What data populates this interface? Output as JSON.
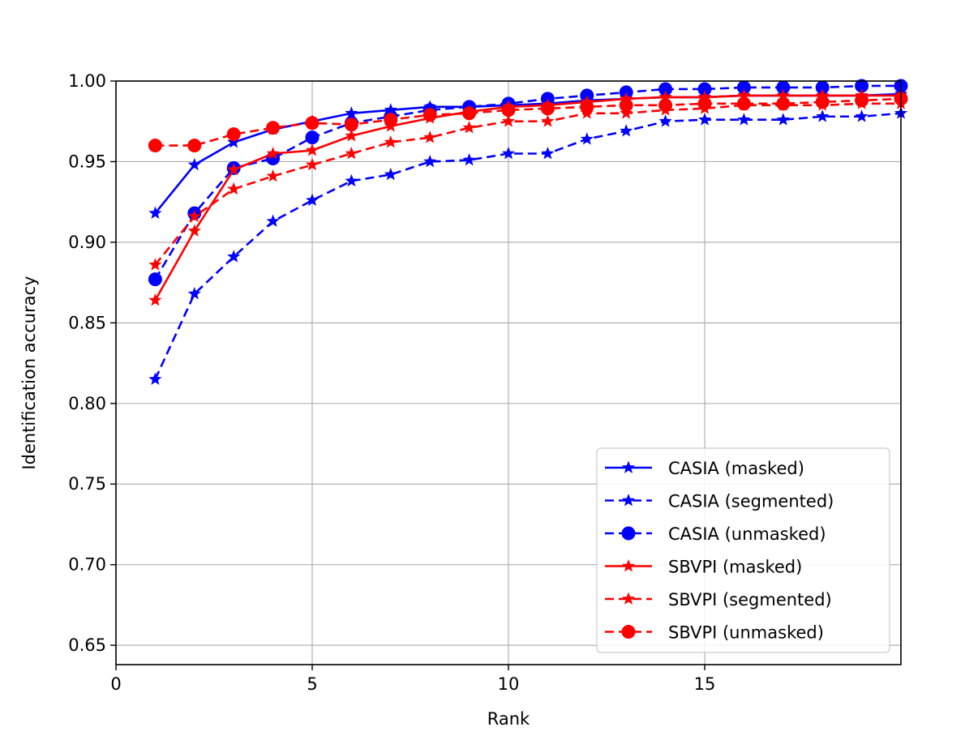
{
  "chart_data": {
    "type": "line",
    "title": "",
    "xlabel": "Rank",
    "ylabel": "Identification accuracy",
    "xlim": [
      0,
      20
    ],
    "ylim": [
      0.638,
      1.0
    ],
    "x_ticks": [
      0,
      5,
      10,
      15
    ],
    "y_ticks": [
      0.65,
      0.7,
      0.75,
      0.8,
      0.85,
      0.9,
      0.95,
      1.0
    ],
    "grid": true,
    "legend_position": "lower-right",
    "x": [
      1,
      2,
      3,
      4,
      5,
      6,
      7,
      8,
      9,
      10,
      11,
      12,
      13,
      14,
      15,
      16,
      17,
      18,
      19,
      20
    ],
    "series": [
      {
        "name": "CASIA (masked)",
        "color": "#0000ff",
        "linestyle": "solid",
        "marker": "star",
        "values": [
          0.918,
          0.948,
          0.962,
          0.97,
          0.975,
          0.98,
          0.982,
          0.984,
          0.984,
          0.985,
          0.986,
          0.988,
          0.989,
          0.99,
          0.99,
          0.991,
          0.991,
          0.991,
          0.991,
          0.992
        ]
      },
      {
        "name": "CASIA (segmented)",
        "color": "#0000ff",
        "linestyle": "dashed",
        "marker": "star",
        "values": [
          0.815,
          0.868,
          0.891,
          0.913,
          0.926,
          0.938,
          0.942,
          0.95,
          0.951,
          0.955,
          0.955,
          0.964,
          0.969,
          0.975,
          0.976,
          0.976,
          0.976,
          0.978,
          0.978,
          0.98
        ]
      },
      {
        "name": "CASIA (unmasked)",
        "color": "#0000ff",
        "linestyle": "dashed",
        "marker": "circle",
        "values": [
          0.877,
          0.918,
          0.946,
          0.952,
          0.965,
          0.974,
          0.978,
          0.982,
          0.984,
          0.986,
          0.989,
          0.991,
          0.993,
          0.995,
          0.995,
          0.996,
          0.996,
          0.996,
          0.997,
          0.997
        ]
      },
      {
        "name": "SBVPI (masked)",
        "color": "#ff0000",
        "linestyle": "solid",
        "marker": "star",
        "values": [
          0.864,
          0.907,
          0.945,
          0.955,
          0.957,
          0.966,
          0.972,
          0.977,
          0.981,
          0.984,
          0.985,
          0.987,
          0.989,
          0.99,
          0.99,
          0.991,
          0.991,
          0.991,
          0.991,
          0.991
        ]
      },
      {
        "name": "SBVPI (segmented)",
        "color": "#ff0000",
        "linestyle": "dashed",
        "marker": "star",
        "values": [
          0.886,
          0.916,
          0.933,
          0.941,
          0.948,
          0.955,
          0.962,
          0.965,
          0.971,
          0.975,
          0.975,
          0.98,
          0.98,
          0.982,
          0.983,
          0.985,
          0.985,
          0.985,
          0.986,
          0.986
        ]
      },
      {
        "name": "SBVPI (unmasked)",
        "color": "#ff0000",
        "linestyle": "dashed",
        "marker": "circle",
        "values": [
          0.96,
          0.96,
          0.967,
          0.971,
          0.974,
          0.973,
          0.976,
          0.979,
          0.98,
          0.982,
          0.983,
          0.984,
          0.985,
          0.985,
          0.986,
          0.986,
          0.986,
          0.987,
          0.988,
          0.989
        ]
      }
    ]
  }
}
